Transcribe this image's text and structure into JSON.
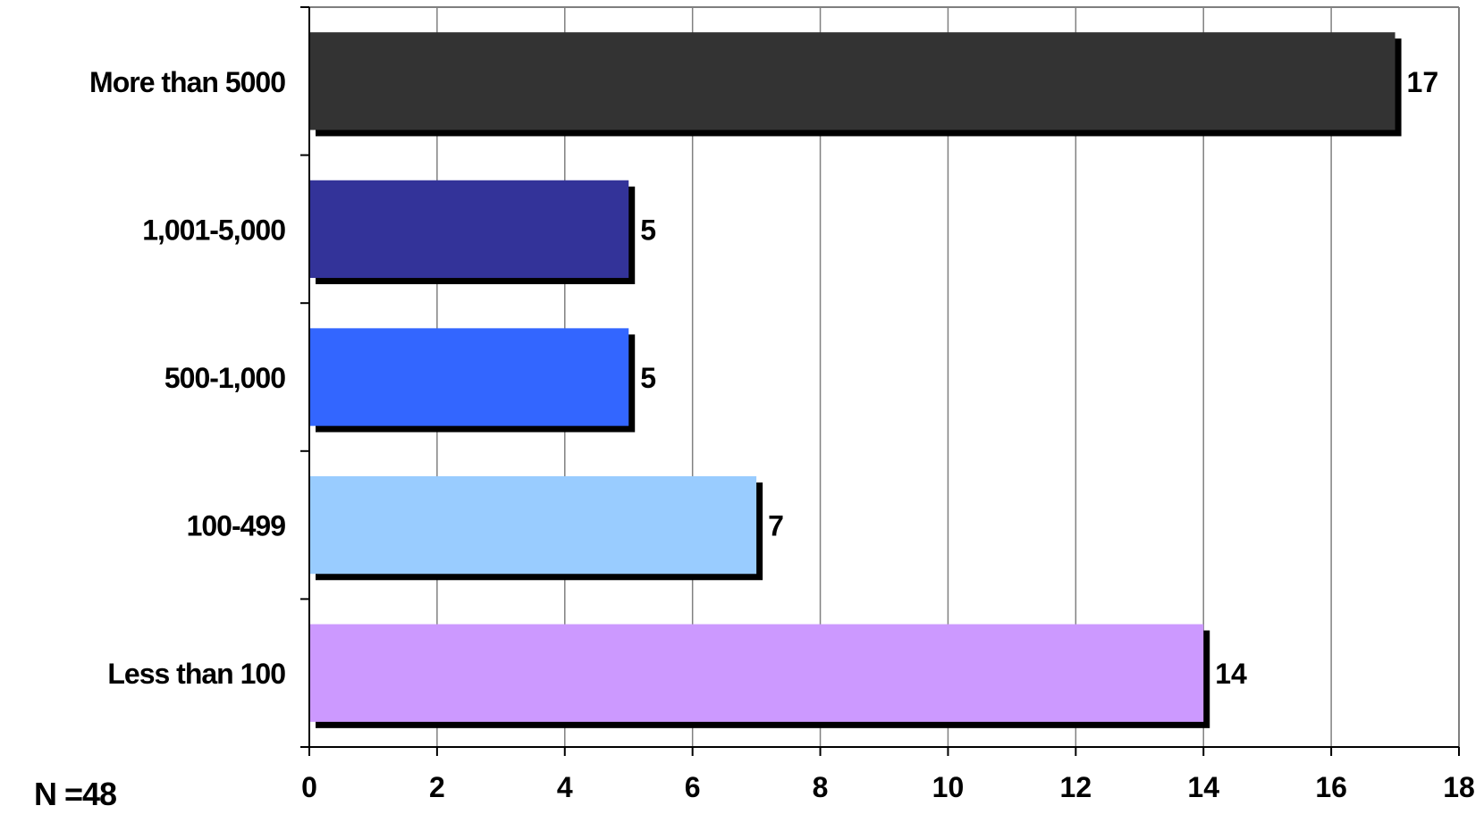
{
  "chart_data": {
    "type": "bar",
    "orientation": "horizontal",
    "categories": [
      "More than 5000",
      "1,001-5,000",
      "500-1,000",
      "100-499",
      "Less than 100"
    ],
    "values": [
      17,
      5,
      5,
      7,
      14
    ],
    "colors": [
      "#333333",
      "#333399",
      "#3366ff",
      "#99ccff",
      "#cc99ff"
    ],
    "xlim": [
      0,
      18
    ],
    "x_ticks": [
      "0",
      "2",
      "4",
      "6",
      "8",
      "10",
      "12",
      "14",
      "16",
      "18"
    ],
    "grid": "vertical",
    "data_labels": [
      "17",
      "5",
      "5",
      "7",
      "14"
    ],
    "title": "",
    "xlabel": "",
    "ylabel": ""
  },
  "note": "N =48"
}
